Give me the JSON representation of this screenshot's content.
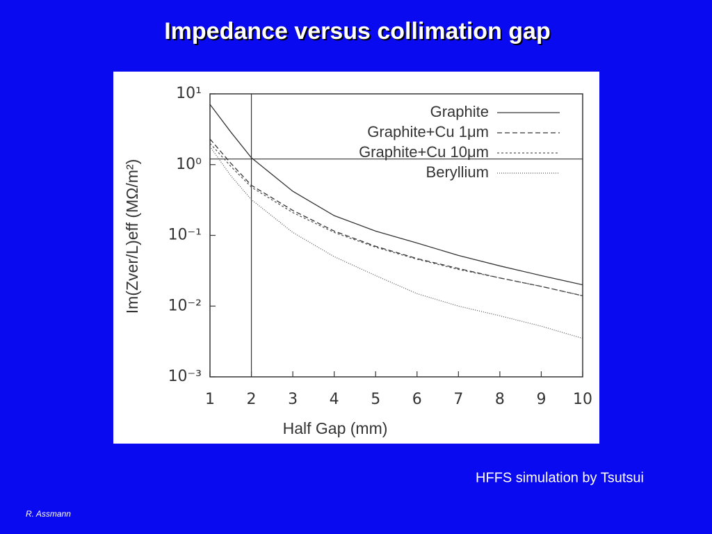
{
  "chart_data": {
    "type": "line",
    "title": "Impedance versus collimation gap",
    "caption": "HFFS simulation by Tsutsui",
    "footer": "R. Assmann",
    "xlabel": "Half Gap (mm)",
    "ylabel": "Im(Zver/L)eff (MΩ/m²)",
    "x": [
      1,
      1.5,
      2,
      3,
      4,
      5,
      6,
      7,
      8,
      9,
      10
    ],
    "series": [
      {
        "name": "Graphite",
        "color": "#333333",
        "dash": "none",
        "values": [
          7.1,
          2.9,
          1.25,
          0.42,
          0.19,
          0.115,
          0.078,
          0.052,
          0.037,
          0.027,
          0.02
        ]
      },
      {
        "name": "Graphite+Cu 1μm",
        "color": "#333333",
        "dash": "7,4",
        "values": [
          2.3,
          1.05,
          0.51,
          0.225,
          0.115,
          0.07,
          0.047,
          0.034,
          0.025,
          0.019,
          0.014
        ]
      },
      {
        "name": "Graphite+Cu 10μm",
        "color": "#555555",
        "dash": "3,3",
        "values": [
          2.0,
          0.95,
          0.48,
          0.21,
          0.11,
          0.068,
          0.046,
          0.033,
          0.025,
          0.019,
          0.014
        ]
      },
      {
        "name": "Beryllium",
        "color": "#555555",
        "dash": "1,2",
        "values": [
          1.8,
          0.7,
          0.32,
          0.11,
          0.05,
          0.027,
          0.015,
          0.01,
          0.0073,
          0.0052,
          0.0035
        ]
      }
    ],
    "xlim": [
      1,
      10
    ],
    "xticks": [
      1,
      2,
      3,
      4,
      5,
      6,
      7,
      8,
      9,
      10
    ],
    "ylim": [
      0.001,
      10
    ],
    "log_y": true,
    "yticks": [
      {
        "value": 10,
        "label": "10¹"
      },
      {
        "value": 1,
        "label": "10⁰"
      },
      {
        "value": 0.1,
        "label": "10⁻¹"
      },
      {
        "value": 0.01,
        "label": "10⁻²"
      },
      {
        "value": 0.001,
        "label": "10⁻³"
      }
    ],
    "reference_lines": {
      "x": 2,
      "y": 1.2
    },
    "legend": "top-right"
  }
}
